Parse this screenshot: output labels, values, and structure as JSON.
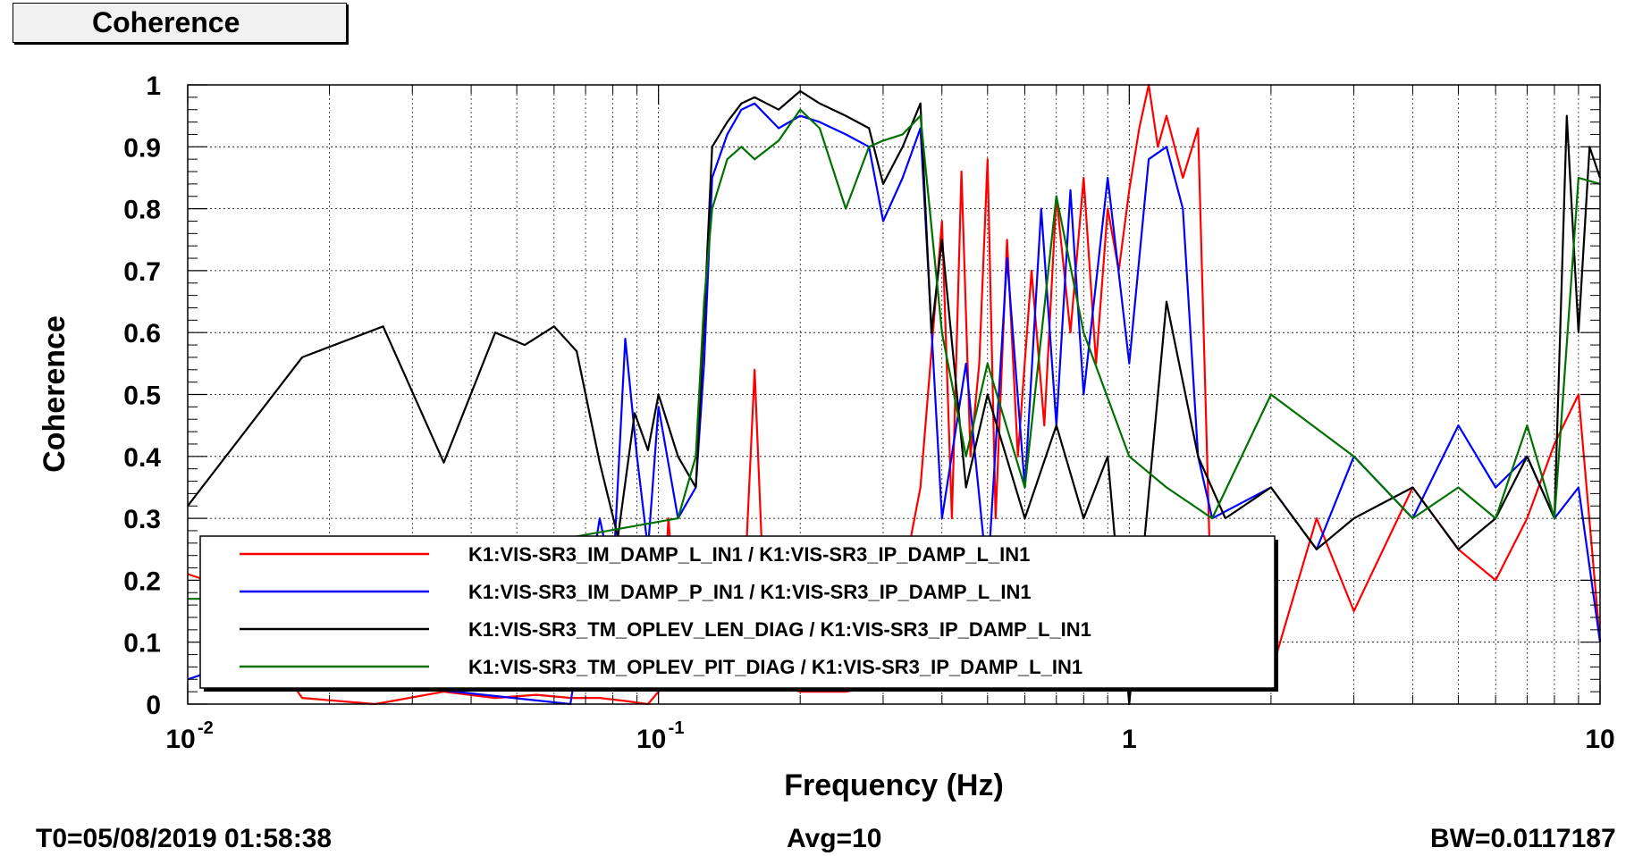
{
  "panel_title": "Coherence",
  "footer": {
    "t0": "T0=05/08/2019 01:58:38",
    "avg": "Avg=10",
    "bw": "BW=0.0117187"
  },
  "chart_data": {
    "type": "line",
    "title": "Coherence",
    "xlabel": "Frequency (Hz)",
    "ylabel": "Coherence",
    "xscale": "log",
    "xlim": [
      0.01,
      10
    ],
    "ylim": [
      0,
      1
    ],
    "grid": true,
    "legend_position": "bottom-left-center",
    "x_tick_labels": [
      "10",
      "10",
      "1",
      "10"
    ],
    "x_tick_exponents": [
      "-2",
      "-1",
      "",
      ""
    ],
    "y_tick_labels": [
      "0",
      "0.1",
      "0.2",
      "0.3",
      "0.4",
      "0.5",
      "0.6",
      "0.7",
      "0.8",
      "0.9",
      "1"
    ],
    "series": [
      {
        "name": "K1:VIS-SR3_IM_DAMP_L_IN1 / K1:VIS-SR3_IP_DAMP_L_IN1",
        "color": "#ff0000",
        "x": [
          0.01,
          0.012,
          0.0175,
          0.025,
          0.035,
          0.045,
          0.055,
          0.065,
          0.075,
          0.085,
          0.095,
          0.1,
          0.105,
          0.11,
          0.13,
          0.15,
          0.16,
          0.17,
          0.18,
          0.2,
          0.25,
          0.3,
          0.33,
          0.36,
          0.4,
          0.42,
          0.44,
          0.46,
          0.48,
          0.5,
          0.52,
          0.55,
          0.58,
          0.62,
          0.66,
          0.7,
          0.75,
          0.8,
          0.85,
          0.9,
          0.95,
          1.0,
          1.05,
          1.1,
          1.15,
          1.2,
          1.3,
          1.4,
          1.5,
          1.6,
          1.8,
          2.0,
          2.5,
          3.0,
          4.0,
          5.0,
          6.0,
          7.0,
          8.0,
          9.0,
          10
        ],
        "y": [
          0.21,
          0.19,
          0.01,
          0.0,
          0.02,
          0.01,
          0.015,
          0.01,
          0.01,
          0.005,
          0.0,
          0.02,
          0.3,
          0.1,
          0.05,
          0.08,
          0.54,
          0.05,
          0.03,
          0.02,
          0.02,
          0.03,
          0.2,
          0.35,
          0.78,
          0.3,
          0.86,
          0.4,
          0.55,
          0.88,
          0.3,
          0.75,
          0.4,
          0.7,
          0.45,
          0.82,
          0.6,
          0.85,
          0.55,
          0.8,
          0.7,
          0.83,
          0.93,
          1.0,
          0.9,
          0.95,
          0.85,
          0.93,
          0.1,
          0.05,
          0.1,
          0.05,
          0.3,
          0.15,
          0.35,
          0.25,
          0.2,
          0.3,
          0.42,
          0.5,
          0.1
        ]
      },
      {
        "name": "K1:VIS-SR3_IM_DAMP_P_IN1 / K1:VIS-SR3_IP_DAMP_L_IN1",
        "color": "#0000ff",
        "x": [
          0.01,
          0.012,
          0.065,
          0.075,
          0.08,
          0.085,
          0.09,
          0.095,
          0.1,
          0.11,
          0.12,
          0.125,
          0.13,
          0.14,
          0.15,
          0.16,
          0.18,
          0.2,
          0.22,
          0.25,
          0.28,
          0.3,
          0.33,
          0.36,
          0.4,
          0.45,
          0.5,
          0.55,
          0.6,
          0.65,
          0.7,
          0.75,
          0.8,
          0.9,
          1.0,
          1.1,
          1.2,
          1.3,
          1.4,
          1.5,
          2.0,
          2.5,
          3.0,
          4.0,
          5.0,
          6.0,
          7.0,
          8.0,
          9.0,
          10
        ],
        "y": [
          0.04,
          0.06,
          0.0,
          0.3,
          0.2,
          0.59,
          0.4,
          0.25,
          0.48,
          0.3,
          0.35,
          0.55,
          0.85,
          0.92,
          0.96,
          0.97,
          0.93,
          0.95,
          0.94,
          0.92,
          0.9,
          0.78,
          0.85,
          0.93,
          0.3,
          0.55,
          0.2,
          0.72,
          0.35,
          0.8,
          0.45,
          0.83,
          0.5,
          0.85,
          0.55,
          0.88,
          0.9,
          0.8,
          0.4,
          0.3,
          0.35,
          0.25,
          0.4,
          0.3,
          0.45,
          0.35,
          0.4,
          0.3,
          0.35,
          0.1
        ]
      },
      {
        "name": "K1:VIS-SR3_TM_OPLEV_LEN_DIAG / K1:VIS-SR3_IP_DAMP_L_IN1",
        "color": "#000000",
        "x": [
          0.01,
          0.0175,
          0.026,
          0.035,
          0.045,
          0.052,
          0.06,
          0.067,
          0.075,
          0.082,
          0.089,
          0.095,
          0.1,
          0.11,
          0.12,
          0.125,
          0.13,
          0.14,
          0.15,
          0.16,
          0.18,
          0.2,
          0.22,
          0.25,
          0.28,
          0.3,
          0.33,
          0.36,
          0.38,
          0.4,
          0.45,
          0.5,
          0.6,
          0.7,
          0.8,
          0.9,
          1.0,
          1.2,
          1.4,
          1.6,
          2.0,
          2.5,
          3.0,
          4.0,
          5.0,
          6.0,
          7.0,
          8.0,
          8.5,
          9.0,
          9.5,
          10
        ],
        "y": [
          0.32,
          0.56,
          0.61,
          0.39,
          0.6,
          0.58,
          0.61,
          0.57,
          0.39,
          0.27,
          0.47,
          0.41,
          0.5,
          0.4,
          0.35,
          0.62,
          0.9,
          0.94,
          0.97,
          0.98,
          0.96,
          0.99,
          0.97,
          0.95,
          0.93,
          0.84,
          0.9,
          0.97,
          0.6,
          0.75,
          0.35,
          0.5,
          0.3,
          0.45,
          0.3,
          0.4,
          0.0,
          0.65,
          0.4,
          0.3,
          0.35,
          0.25,
          0.3,
          0.35,
          0.25,
          0.3,
          0.4,
          0.3,
          0.95,
          0.6,
          0.9,
          0.85
        ]
      },
      {
        "name": "K1:VIS-SR3_TM_OPLEV_PIT_DIAG / K1:VIS-SR3_IP_DAMP_L_IN1",
        "color": "#007000",
        "x": [
          0.01,
          0.012,
          0.11,
          0.12,
          0.125,
          0.13,
          0.14,
          0.15,
          0.16,
          0.18,
          0.2,
          0.22,
          0.25,
          0.28,
          0.3,
          0.33,
          0.36,
          0.4,
          0.45,
          0.5,
          0.6,
          0.7,
          0.8,
          1.0,
          1.2,
          1.5,
          2.0,
          3.0,
          4.0,
          5.0,
          6.0,
          7.0,
          8.0,
          9.0,
          10
        ],
        "y": [
          0.17,
          0.17,
          0.3,
          0.4,
          0.65,
          0.8,
          0.88,
          0.9,
          0.88,
          0.91,
          0.96,
          0.93,
          0.8,
          0.9,
          0.91,
          0.92,
          0.95,
          0.6,
          0.4,
          0.55,
          0.35,
          0.82,
          0.6,
          0.4,
          0.35,
          0.3,
          0.5,
          0.4,
          0.3,
          0.35,
          0.3,
          0.45,
          0.3,
          0.85,
          0.84
        ]
      }
    ]
  }
}
